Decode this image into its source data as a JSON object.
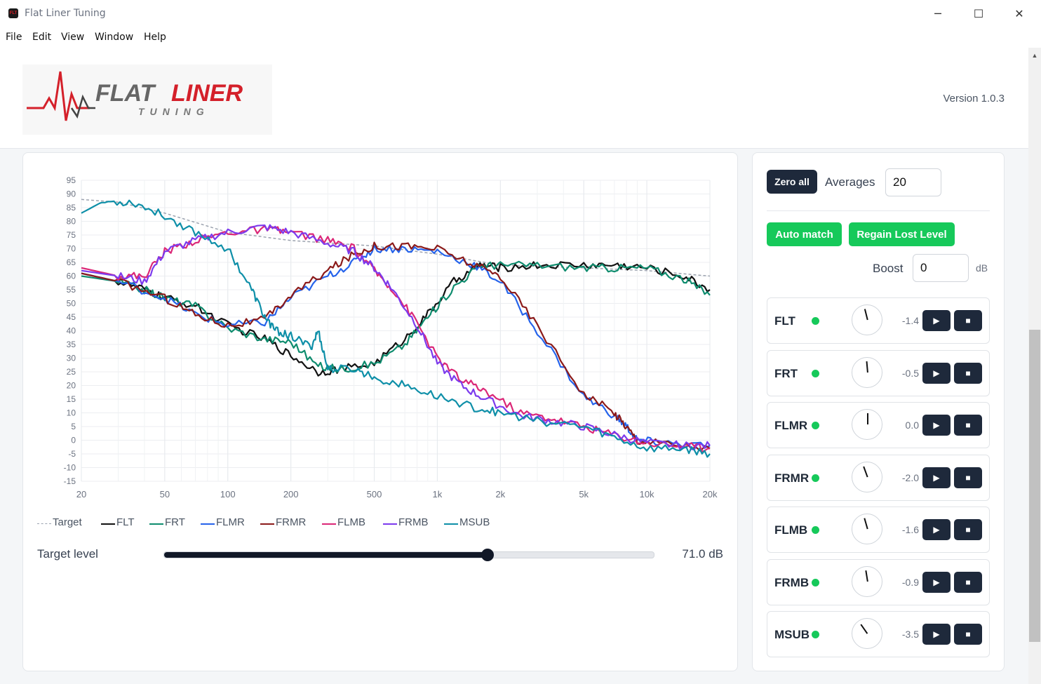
{
  "window": {
    "title": "Flat Liner Tuning",
    "minimize": "─",
    "maximize": "☐",
    "close": "✕"
  },
  "menu": [
    "File",
    "Edit",
    "View",
    "Window",
    "Help"
  ],
  "header": {
    "logo_main_1": "FLAT",
    "logo_main_2": "LINER",
    "logo_sub": "TUNING",
    "version": "Version 1.0.3"
  },
  "controls": {
    "zero_all": "Zero all",
    "averages_label": "Averages",
    "averages_value": "20",
    "auto_match": "Auto match",
    "regain": "Regain Lost Level",
    "boost_label": "Boost",
    "boost_value": "0",
    "boost_unit": "dB"
  },
  "target_level": {
    "label": "Target level",
    "value_text": "71.0 dB",
    "fraction": 0.66
  },
  "channels": [
    {
      "name": "FLT",
      "value": "-1.4",
      "knob_deg": -14
    },
    {
      "name": "FRT",
      "value": "-0.5",
      "knob_deg": -5
    },
    {
      "name": "FLMR",
      "value": "0.0",
      "knob_deg": 0
    },
    {
      "name": "FRMR",
      "value": "-2.0",
      "knob_deg": -20
    },
    {
      "name": "FLMB",
      "value": "-1.6",
      "knob_deg": -16
    },
    {
      "name": "FRMB",
      "value": "-0.9",
      "knob_deg": -9
    },
    {
      "name": "MSUB",
      "value": "-3.5",
      "knob_deg": -35
    }
  ],
  "chart_data": {
    "type": "line",
    "x_scale": "log",
    "xlim": [
      20,
      20000
    ],
    "ylim": [
      -15,
      95
    ],
    "x_ticks": [
      20,
      50,
      100,
      200,
      500,
      1000,
      2000,
      5000,
      10000,
      20000
    ],
    "x_tick_labels": [
      "20",
      "50",
      "100",
      "200",
      "500",
      "1k",
      "2k",
      "5k",
      "10k",
      "20k"
    ],
    "y_ticks": [
      95,
      90,
      85,
      80,
      75,
      70,
      65,
      60,
      55,
      50,
      45,
      40,
      35,
      30,
      25,
      20,
      15,
      10,
      5,
      0,
      -5,
      -10,
      -15
    ],
    "grid": true,
    "legend_position": "bottom-left",
    "series": [
      {
        "name": "Target",
        "color": "#9ca3af",
        "dashed": true,
        "x": [
          20,
          30,
          50,
          100,
          200,
          500,
          1000,
          2000,
          5000,
          10000,
          20000
        ],
        "y": [
          88,
          87,
          83,
          76,
          73,
          71,
          68,
          64,
          63,
          62,
          60
        ]
      },
      {
        "name": "FLT",
        "color": "#111111",
        "x": [
          20,
          30,
          40,
          50,
          70,
          100,
          150,
          200,
          270,
          350,
          500,
          700,
          900,
          1200,
          1600,
          2000,
          3000,
          5000,
          7000,
          10000,
          15000,
          20000
        ],
        "y": [
          61,
          58,
          55,
          52,
          49,
          42,
          37,
          31,
          25,
          26,
          28,
          37,
          46,
          58,
          64,
          63,
          64,
          64,
          64,
          63,
          60,
          55
        ]
      },
      {
        "name": "FRT",
        "color": "#0e8c6e",
        "x": [
          20,
          30,
          40,
          50,
          70,
          100,
          150,
          200,
          270,
          350,
          500,
          700,
          900,
          1200,
          1600,
          2000,
          3000,
          5000,
          7000,
          10000,
          15000,
          20000
        ],
        "y": [
          60,
          58,
          55,
          52,
          49,
          41,
          37,
          36,
          27,
          26,
          28,
          35,
          45,
          56,
          64,
          64,
          64,
          63,
          63,
          63,
          59,
          53
        ]
      },
      {
        "name": "FLMR",
        "color": "#2563eb",
        "x": [
          20,
          30,
          50,
          70,
          100,
          150,
          200,
          300,
          400,
          500,
          700,
          1000,
          1500,
          2000,
          3000,
          5000,
          7000,
          8000,
          9000,
          12000,
          20000
        ],
        "y": [
          61,
          58,
          52,
          46,
          42,
          43,
          52,
          60,
          65,
          70,
          70,
          69,
          64,
          58,
          40,
          16,
          9,
          5,
          0,
          -1,
          -2
        ]
      },
      {
        "name": "FRMR",
        "color": "#8b1a1a",
        "x": [
          20,
          30,
          50,
          70,
          100,
          150,
          200,
          300,
          400,
          500,
          700,
          1000,
          1500,
          2000,
          3000,
          5000,
          7000,
          8000,
          9000,
          12000,
          20000
        ],
        "y": [
          61,
          58,
          52,
          46,
          42,
          44,
          53,
          62,
          68,
          71,
          71,
          70,
          64,
          60,
          42,
          17,
          10,
          5,
          0,
          -1,
          -3
        ]
      },
      {
        "name": "FLMB",
        "color": "#db2777",
        "x": [
          20,
          30,
          40,
          50,
          70,
          100,
          150,
          200,
          300,
          400,
          500,
          600,
          800,
          1000,
          1300,
          1700,
          2500,
          3500,
          5000,
          7000,
          10000,
          15000,
          20000
        ],
        "y": [
          63,
          60,
          60,
          69,
          73,
          76,
          77,
          76,
          73,
          70,
          62,
          56,
          43,
          30,
          22,
          18,
          10,
          8,
          5,
          2,
          -1,
          -2,
          -3
        ]
      },
      {
        "name": "FRMB",
        "color": "#7c3aed",
        "x": [
          20,
          30,
          40,
          50,
          70,
          100,
          150,
          200,
          300,
          400,
          500,
          600,
          800,
          1000,
          1300,
          1700,
          2500,
          3500,
          5000,
          7000,
          10000,
          15000,
          20000
        ],
        "y": [
          62,
          60,
          58,
          69,
          73,
          76,
          78,
          76,
          72,
          69,
          63,
          56,
          42,
          28,
          20,
          15,
          9,
          7,
          5,
          2,
          -1,
          -2,
          -2
        ]
      },
      {
        "name": "MSUB",
        "color": "#0e8fa8",
        "x": [
          20,
          25,
          35,
          50,
          70,
          100,
          130,
          150,
          170,
          200,
          250,
          270,
          300,
          400,
          500,
          700,
          1000,
          1500,
          2000,
          3000,
          5000,
          7000,
          10000,
          15000,
          20000
        ],
        "y": [
          83,
          87,
          87,
          82,
          76,
          70,
          55,
          45,
          40,
          38,
          34,
          40,
          26,
          26,
          23,
          20,
          16,
          12,
          10,
          7,
          5,
          1,
          -3,
          -3,
          -5
        ]
      }
    ]
  }
}
